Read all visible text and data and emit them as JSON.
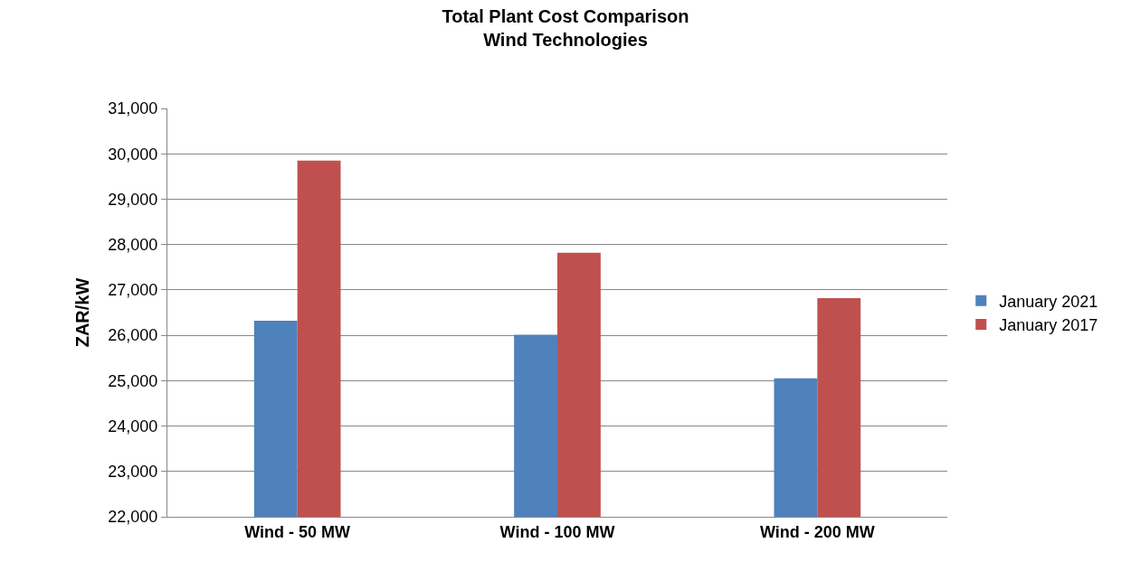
{
  "chart_data": {
    "type": "bar",
    "title": "Total Plant Cost Comparison\nWind Technologies",
    "ylabel": "ZAR/kW",
    "categories": [
      "Wind - 50 MW",
      "Wind - 100 MW",
      "Wind - 200 MW"
    ],
    "series": [
      {
        "name": "January 2021",
        "color": "#4f81bd",
        "values": [
          26320,
          26010,
          25050
        ]
      },
      {
        "name": "January 2017",
        "color": "#c0504d",
        "values": [
          29850,
          27820,
          26820
        ]
      }
    ],
    "ylim": [
      22000,
      31000
    ],
    "yticks": [
      {
        "value": 22000,
        "label": "22,000"
      },
      {
        "value": 23000,
        "label": "23,000"
      },
      {
        "value": 24000,
        "label": "24,000"
      },
      {
        "value": 25000,
        "label": "25,000"
      },
      {
        "value": 26000,
        "label": "26,000"
      },
      {
        "value": 27000,
        "label": "27,000"
      },
      {
        "value": 28000,
        "label": "28,000"
      },
      {
        "value": 29000,
        "label": "29,000"
      },
      {
        "value": 30000,
        "label": "30,000"
      },
      {
        "value": 31000,
        "label": "31,000"
      }
    ],
    "grid": "y",
    "legend": "right"
  }
}
